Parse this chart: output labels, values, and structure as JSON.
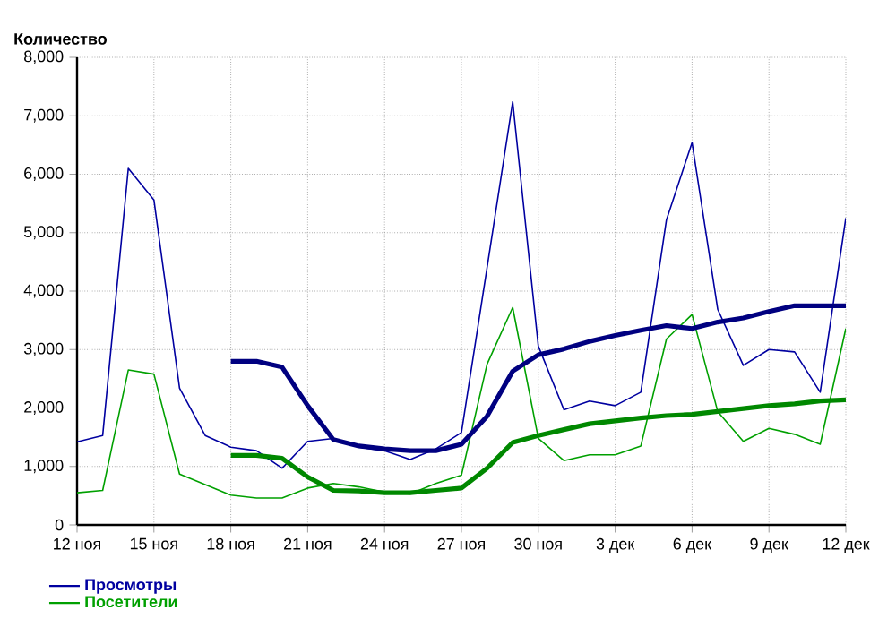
{
  "chart_data": {
    "type": "line",
    "ylabel": "Количество",
    "categories": [
      "12 ноя",
      null,
      null,
      "15 ноя",
      null,
      null,
      "18 ноя",
      null,
      null,
      "21 ноя",
      null,
      null,
      "24 ноя",
      null,
      null,
      "27 ноя",
      null,
      null,
      "30 ноя",
      null,
      null,
      "3 дек",
      null,
      null,
      "6 дек",
      null,
      null,
      "9 дек",
      null,
      null,
      "12 дек"
    ],
    "series": [
      {
        "name": "Просмотры",
        "color": "#0000a0",
        "values": [
          1420,
          1530,
          6100,
          5560,
          2340,
          1530,
          1330,
          1270,
          970,
          1430,
          1480,
          1330,
          1270,
          1120,
          1300,
          1580,
          4400,
          7240,
          3060,
          1970,
          2120,
          2040,
          2270,
          5220,
          6540,
          3690,
          2730,
          3000,
          2960,
          2270,
          5250
        ]
      },
      {
        "name": "Посетители",
        "color": "#00a000",
        "values": [
          550,
          590,
          2650,
          2580,
          870,
          690,
          510,
          460,
          460,
          630,
          710,
          650,
          560,
          530,
          710,
          850,
          2750,
          3720,
          1480,
          1100,
          1200,
          1200,
          1350,
          3180,
          3600,
          1940,
          1430,
          1650,
          1550,
          1380,
          3360
        ]
      },
      {
        "color": "#000080",
        "values": [
          null,
          null,
          null,
          null,
          null,
          null,
          2800,
          2800,
          2700,
          2040,
          1460,
          1350,
          1300,
          1270,
          1270,
          1380,
          1860,
          2630,
          2910,
          3010,
          3140,
          3240,
          3330,
          3410,
          3360,
          3470,
          3540,
          3650,
          3750,
          3750,
          3750
        ]
      },
      {
        "color": "#008800",
        "values": [
          null,
          null,
          null,
          null,
          null,
          null,
          1190,
          1190,
          1140,
          820,
          590,
          580,
          550,
          550,
          590,
          630,
          970,
          1410,
          1530,
          1630,
          1730,
          1780,
          1830,
          1870,
          1890,
          1940,
          1990,
          2040,
          2070,
          2120,
          2140
        ]
      }
    ],
    "ylim": [
      0,
      8000
    ],
    "yticks": [
      0,
      {
        "value": 1000,
        "label": "1,000"
      },
      {
        "value": 2000,
        "label": "2,000"
      },
      {
        "value": 3000,
        "label": "3,000"
      },
      {
        "value": 4000,
        "label": "4,000"
      },
      {
        "value": 5000,
        "label": "5,000"
      },
      {
        "value": 6000,
        "label": "6,000"
      },
      {
        "value": 7000,
        "label": "7,000"
      },
      {
        "value": 8000,
        "label": "8,000"
      }
    ],
    "grid": true,
    "legend": "bottom left",
    "line_style": "solid"
  }
}
